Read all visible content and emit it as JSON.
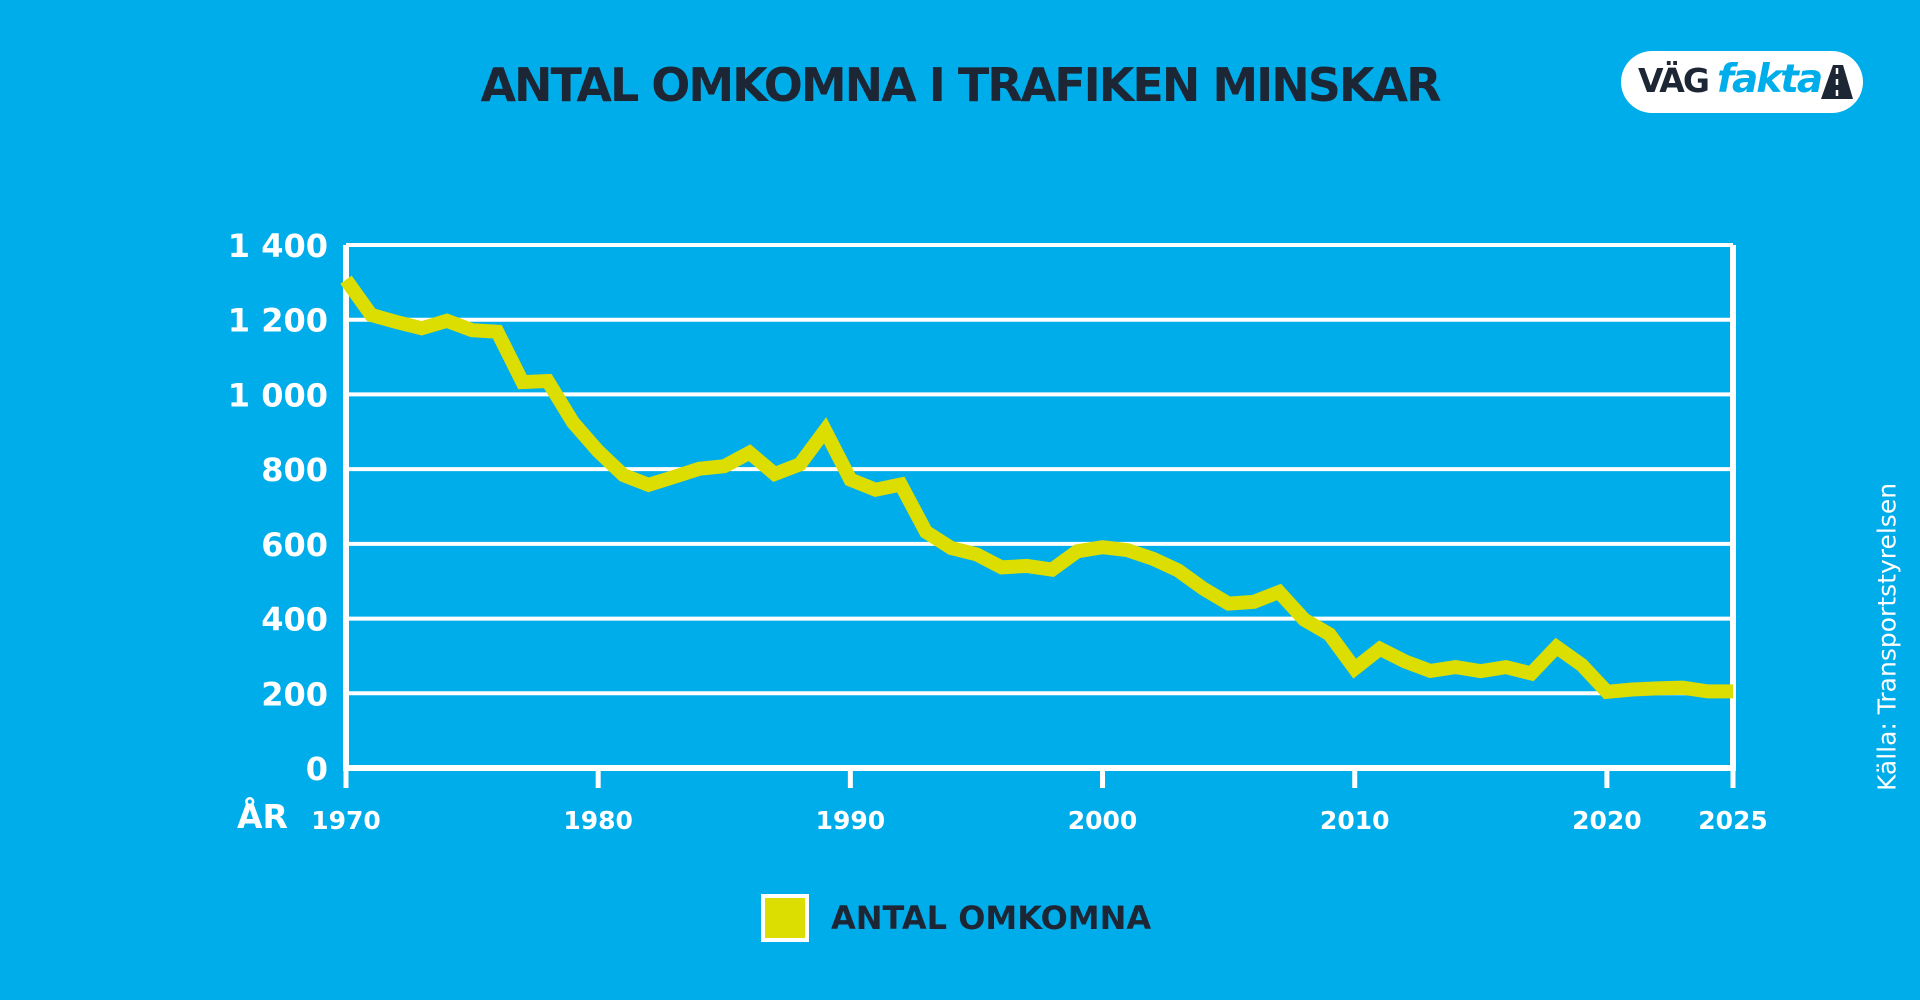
{
  "title": "ANTAL OMKOMNA I TRAFIKEN MINSKAR",
  "logo": {
    "part1": "VÄG",
    "part2": "fakta"
  },
  "source": "Källa: Transportstyrelsen",
  "colors": {
    "background": "#00ADEB",
    "line": "#DCDD00",
    "text_dark": "#1D2634",
    "grid": "#FFFFFF"
  },
  "chart_data": {
    "type": "line",
    "title": "ANTAL OMKOMNA I TRAFIKEN MINSKAR",
    "xlabel": "ÅR",
    "ylabel": "",
    "xlim": [
      1970,
      2025
    ],
    "ylim": [
      0,
      1400
    ],
    "x_ticks": [
      1970,
      1980,
      1990,
      2000,
      2010,
      2020,
      2025
    ],
    "y_ticks": [
      0,
      200,
      400,
      600,
      800,
      1000,
      1200,
      1400
    ],
    "y_tick_labels": [
      "0",
      "200",
      "400",
      "600",
      "800",
      "1 000",
      "1 200",
      "1 400"
    ],
    "grid": true,
    "legend_position": "bottom-center",
    "series": [
      {
        "name": "ANTAL OMKOMNA",
        "color": "#DCDD00",
        "x": [
          1970,
          1971,
          1972,
          1973,
          1974,
          1975,
          1976,
          1977,
          1978,
          1979,
          1980,
          1981,
          1982,
          1983,
          1984,
          1985,
          1986,
          1987,
          1988,
          1989,
          1990,
          1991,
          1992,
          1993,
          1994,
          1995,
          1996,
          1997,
          1998,
          1999,
          2000,
          2001,
          2002,
          2003,
          2004,
          2005,
          2006,
          2007,
          2008,
          2009,
          2010,
          2011,
          2012,
          2013,
          2014,
          2015,
          2016,
          2017,
          2018,
          2019,
          2020,
          2021,
          2022,
          2023,
          2024,
          2025
        ],
        "y": [
          1307,
          1213,
          1194,
          1177,
          1197,
          1172,
          1168,
          1033,
          1036,
          925,
          848,
          784,
          758,
          779,
          801,
          808,
          844,
          787,
          813,
          904,
          772,
          745,
          759,
          632,
          589,
          572,
          537,
          541,
          531,
          580,
          591,
          583,
          560,
          529,
          480,
          440,
          445,
          471,
          397,
          358,
          266,
          319,
          285,
          260,
          270,
          259,
          270,
          253,
          324,
          276,
          204,
          210,
          213,
          215,
          205,
          205
        ]
      }
    ]
  }
}
